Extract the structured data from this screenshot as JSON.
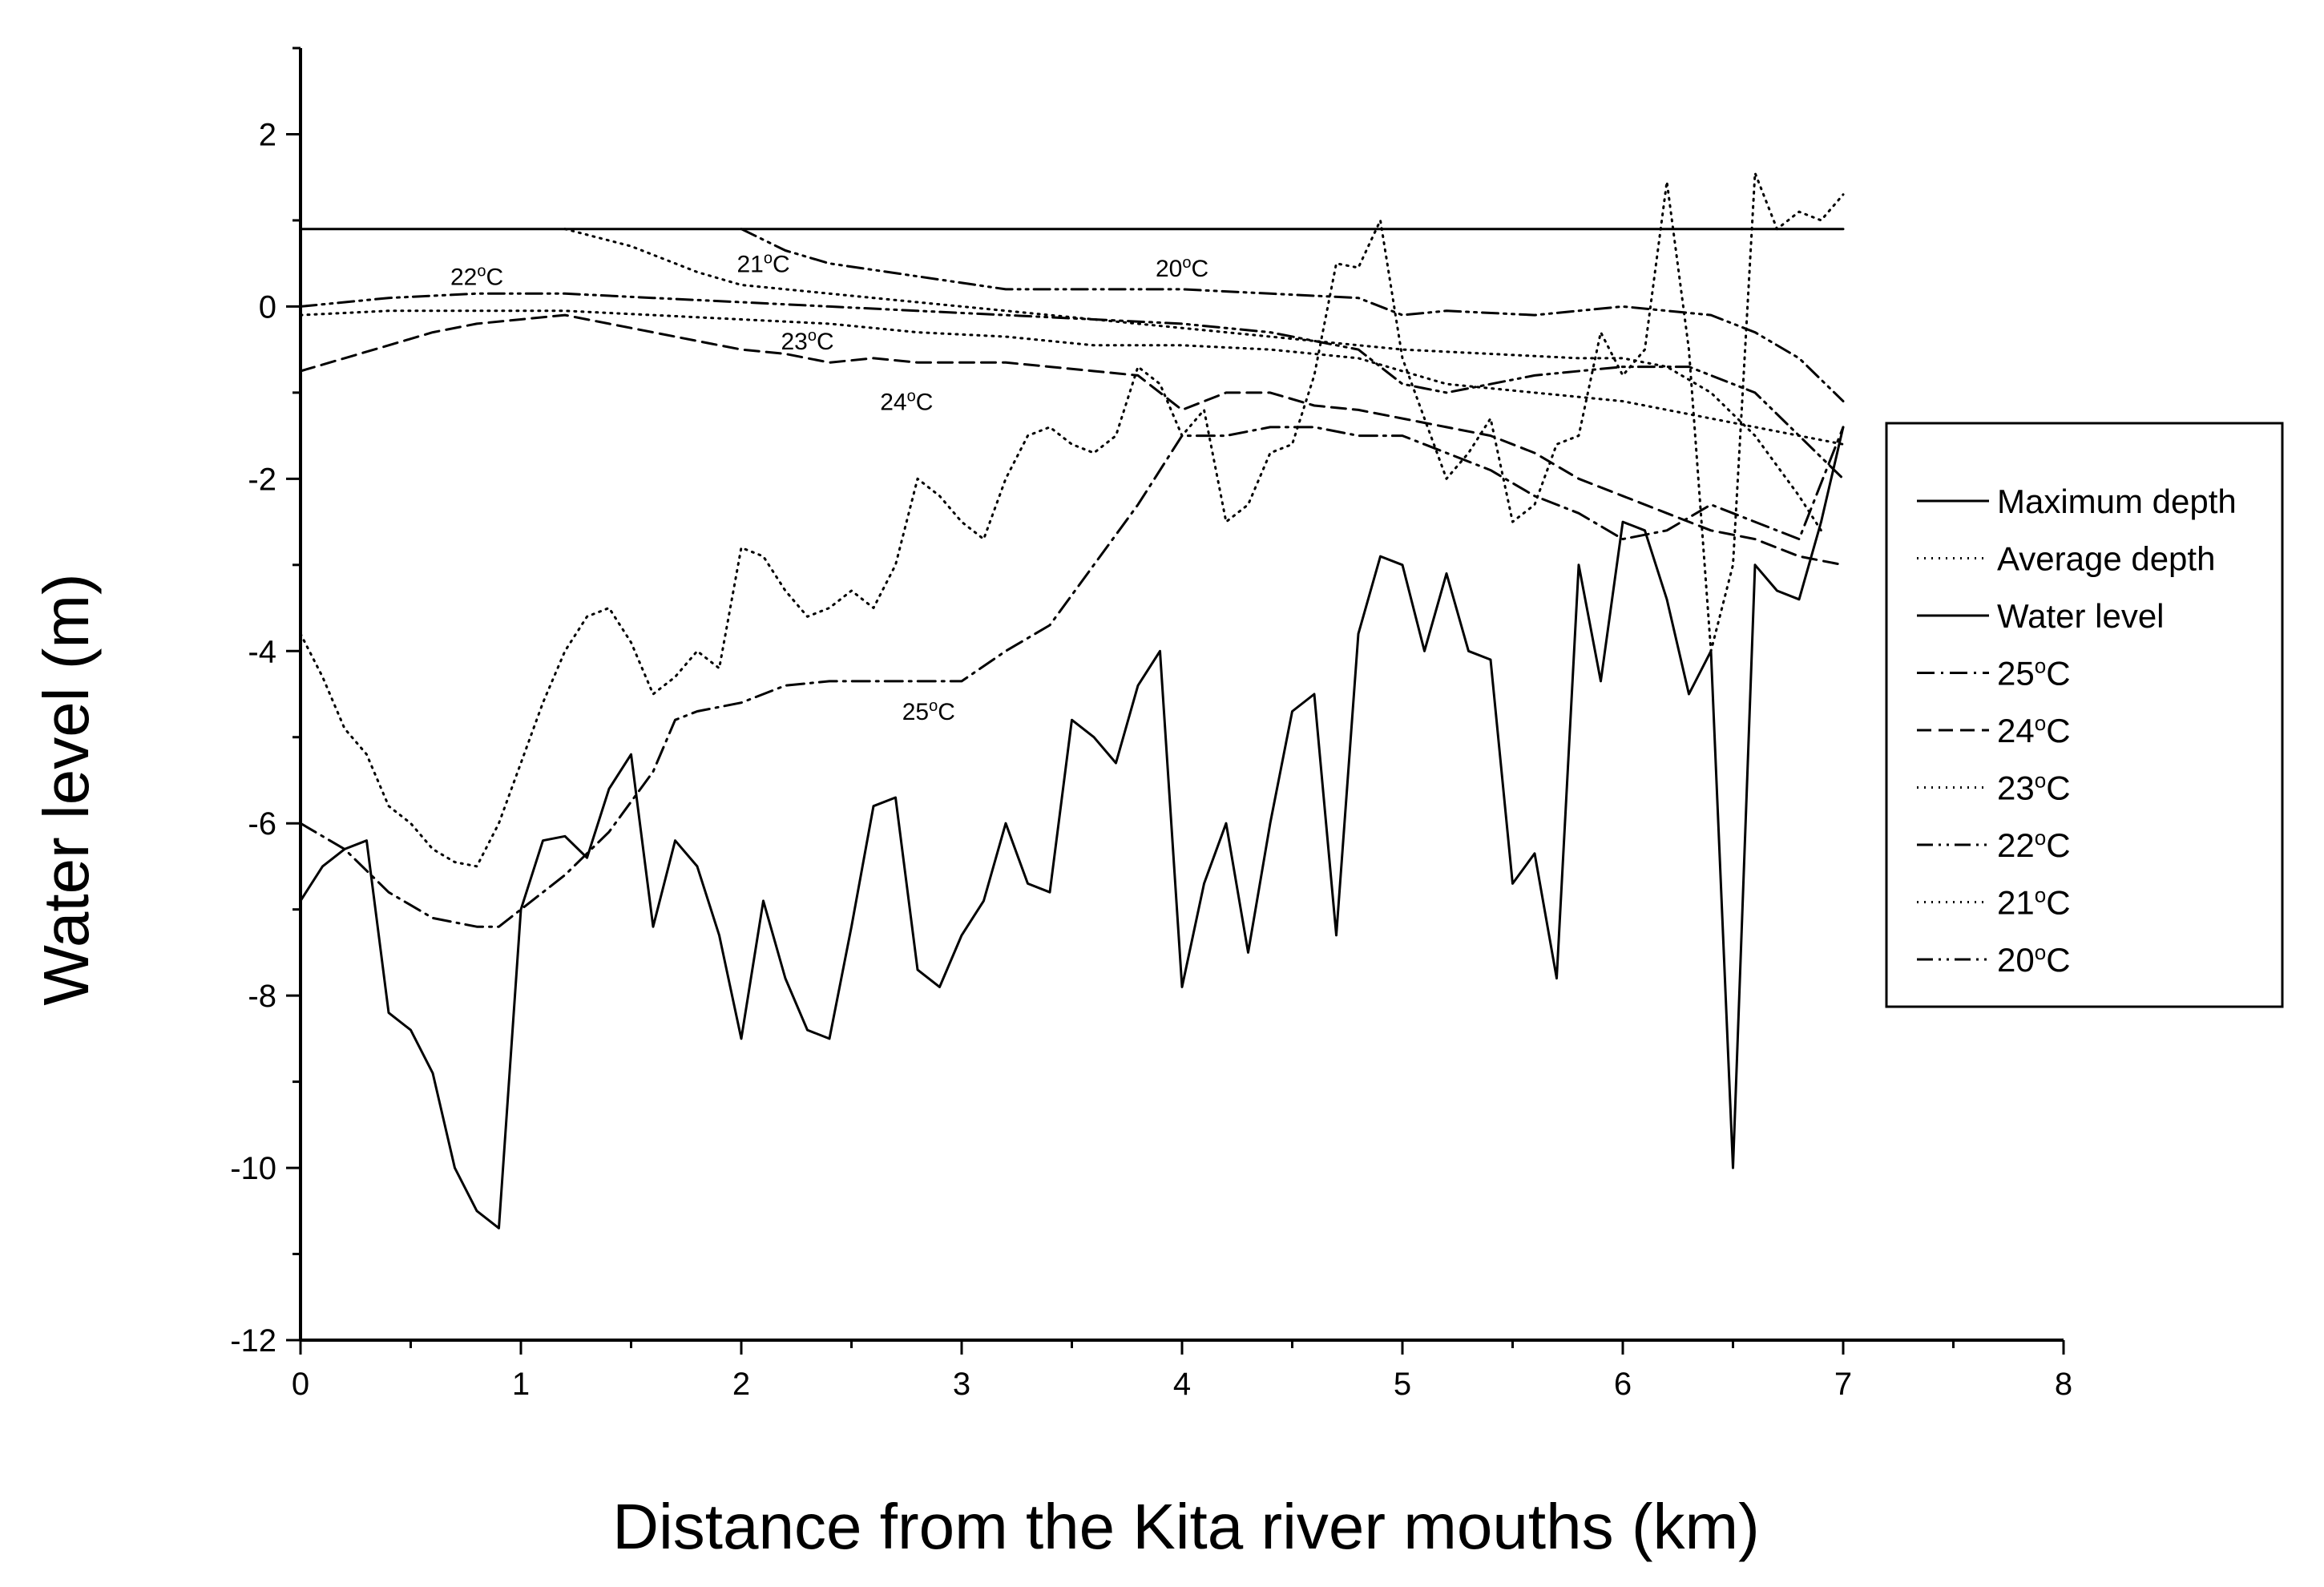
{
  "chart_data": {
    "type": "line",
    "title": "",
    "xlabel": "Distance from the Kita river mouths (km)",
    "ylabel": "Water level (m)",
    "xlim": [
      0,
      8
    ],
    "ylim": [
      -12,
      3
    ],
    "xticks": [
      0,
      1,
      2,
      3,
      4,
      5,
      6,
      7,
      8
    ],
    "yticks": [
      -12,
      -10,
      -8,
      -6,
      -4,
      -2,
      0,
      2
    ],
    "grid": false,
    "legend_position": "right",
    "series": [
      {
        "name": "Maximum depth",
        "style": "solid",
        "x": [
          0,
          0.1,
          0.2,
          0.3,
          0.4,
          0.5,
          0.6,
          0.7,
          0.8,
          0.9,
          1.0,
          1.1,
          1.2,
          1.3,
          1.4,
          1.5,
          1.6,
          1.7,
          1.8,
          1.9,
          2.0,
          2.1,
          2.2,
          2.3,
          2.4,
          2.5,
          2.6,
          2.7,
          2.8,
          2.9,
          3.0,
          3.1,
          3.2,
          3.3,
          3.4,
          3.5,
          3.6,
          3.7,
          3.8,
          3.9,
          4.0,
          4.1,
          4.2,
          4.3,
          4.4,
          4.5,
          4.6,
          4.7,
          4.8,
          4.9,
          5.0,
          5.1,
          5.2,
          5.3,
          5.4,
          5.5,
          5.6,
          5.7,
          5.8,
          5.9,
          6.0,
          6.1,
          6.2,
          6.3,
          6.4,
          6.5,
          6.6,
          6.7,
          6.8,
          6.9,
          7.0
        ],
        "y": [
          -6.9,
          -6.5,
          -6.3,
          -6.2,
          -8.2,
          -8.4,
          -8.9,
          -10.0,
          -10.5,
          -10.7,
          -7.0,
          -6.2,
          -6.15,
          -6.4,
          -5.6,
          -5.2,
          -7.2,
          -6.2,
          -6.5,
          -7.3,
          -8.5,
          -6.9,
          -7.8,
          -8.4,
          -8.5,
          -7.2,
          -5.8,
          -5.7,
          -7.7,
          -7.9,
          -7.3,
          -6.9,
          -6.0,
          -6.7,
          -6.8,
          -4.8,
          -5.0,
          -5.3,
          -4.4,
          -4.0,
          -7.9,
          -6.7,
          -6.0,
          -7.5,
          -6.0,
          -4.7,
          -4.5,
          -7.3,
          -3.8,
          -2.9,
          -3.0,
          -4.0,
          -3.1,
          -4.0,
          -4.1,
          -6.7,
          -6.35,
          -7.8,
          -3.0,
          -4.35,
          -2.5,
          -2.6,
          -3.4,
          -4.5,
          -4.0,
          -10.0,
          -3.0,
          -3.3,
          -3.4,
          -2.5,
          -1.4
        ]
      },
      {
        "name": "Average depth",
        "style": "dotted",
        "x": [
          0,
          0.1,
          0.2,
          0.3,
          0.4,
          0.5,
          0.6,
          0.7,
          0.8,
          0.9,
          1.0,
          1.1,
          1.2,
          1.3,
          1.4,
          1.5,
          1.6,
          1.7,
          1.8,
          1.9,
          2.0,
          2.1,
          2.2,
          2.3,
          2.4,
          2.5,
          2.6,
          2.7,
          2.8,
          2.9,
          3.0,
          3.1,
          3.2,
          3.3,
          3.4,
          3.5,
          3.6,
          3.7,
          3.8,
          3.9,
          4.0,
          4.1,
          4.2,
          4.3,
          4.4,
          4.5,
          4.6,
          4.7,
          4.8,
          4.9,
          5.0,
          5.1,
          5.2,
          5.3,
          5.4,
          5.5,
          5.6,
          5.7,
          5.8,
          5.9,
          6.0,
          6.1,
          6.2,
          6.3,
          6.4,
          6.5,
          6.6,
          6.7,
          6.8,
          6.9,
          7.0
        ],
        "y": [
          -3.8,
          -4.3,
          -4.9,
          -5.2,
          -5.8,
          -6.0,
          -6.3,
          -6.45,
          -6.5,
          -6.0,
          -5.3,
          -4.6,
          -4.0,
          -3.6,
          -3.5,
          -3.9,
          -4.5,
          -4.3,
          -4.0,
          -4.2,
          -2.8,
          -2.9,
          -3.3,
          -3.6,
          -3.5,
          -3.3,
          -3.5,
          -3.0,
          -2.0,
          -2.2,
          -2.5,
          -2.7,
          -2.0,
          -1.5,
          -1.4,
          -1.6,
          -1.7,
          -1.5,
          -0.7,
          -0.9,
          -1.5,
          -1.2,
          -2.5,
          -2.3,
          -1.7,
          -1.6,
          -0.8,
          0.5,
          0.45,
          1.0,
          -0.6,
          -1.3,
          -2.0,
          -1.7,
          -1.3,
          -2.5,
          -2.3,
          -1.6,
          -1.5,
          -0.3,
          -0.8,
          -0.5,
          1.45,
          -0.5,
          -4.0,
          -3.0,
          1.55,
          0.9,
          1.1,
          1.0,
          1.3
        ]
      },
      {
        "name": "Water level",
        "style": "solid",
        "x": [
          0,
          7
        ],
        "y": [
          0.9,
          0.9
        ]
      },
      {
        "name": "25°C",
        "style": "dash-dot",
        "x": [
          0,
          0.2,
          0.4,
          0.6,
          0.8,
          0.9,
          1.0,
          1.2,
          1.4,
          1.6,
          1.7,
          1.8,
          2.0,
          2.2,
          2.4,
          2.6,
          2.8,
          3.0,
          3.2,
          3.4,
          3.6,
          3.8,
          4.0,
          4.2,
          4.4,
          4.6,
          4.8,
          5.0,
          5.2,
          5.4,
          5.6,
          5.8,
          6.0,
          6.2,
          6.4,
          6.6,
          6.8,
          7.0
        ],
        "y": [
          -6.0,
          -6.3,
          -6.8,
          -7.1,
          -7.2,
          -7.2,
          -7.0,
          -6.6,
          -6.1,
          -5.4,
          -4.8,
          -4.7,
          -4.6,
          -4.4,
          -4.35,
          -4.35,
          -4.35,
          -4.35,
          -4.0,
          -3.7,
          -3.0,
          -2.3,
          -1.5,
          -1.5,
          -1.4,
          -1.4,
          -1.5,
          -1.5,
          -1.7,
          -1.9,
          -2.2,
          -2.4,
          -2.7,
          -2.6,
          -2.3,
          -2.5,
          -2.7,
          -1.4
        ]
      },
      {
        "name": "24°C",
        "style": "dashed",
        "x": [
          0,
          0.2,
          0.4,
          0.6,
          0.8,
          1.0,
          1.2,
          1.4,
          1.6,
          1.8,
          2.0,
          2.2,
          2.4,
          2.6,
          2.8,
          3.0,
          3.2,
          3.4,
          3.6,
          3.8,
          4.0,
          4.2,
          4.4,
          4.6,
          4.8,
          5.0,
          5.2,
          5.4,
          5.6,
          5.8,
          6.0,
          6.2,
          6.4,
          6.6,
          6.8,
          7.0
        ],
        "y": [
          -0.75,
          -0.6,
          -0.45,
          -0.3,
          -0.2,
          -0.15,
          -0.1,
          -0.2,
          -0.3,
          -0.4,
          -0.5,
          -0.55,
          -0.65,
          -0.6,
          -0.65,
          -0.65,
          -0.65,
          -0.7,
          -0.75,
          -0.8,
          -1.2,
          -1.0,
          -1.0,
          -1.15,
          -1.2,
          -1.3,
          -1.4,
          -1.5,
          -1.7,
          -2.0,
          -2.2,
          -2.4,
          -2.6,
          -2.7,
          -2.9,
          -3.0
        ]
      },
      {
        "name": "23°C",
        "style": "dotted",
        "x": [
          0,
          0.4,
          0.8,
          1.2,
          1.6,
          2.0,
          2.4,
          2.8,
          3.2,
          3.6,
          4.0,
          4.4,
          4.8,
          5.2,
          5.6,
          6.0,
          6.4,
          6.8,
          7.0
        ],
        "y": [
          -0.1,
          -0.05,
          -0.05,
          -0.05,
          -0.1,
          -0.15,
          -0.2,
          -0.3,
          -0.35,
          -0.45,
          -0.45,
          -0.5,
          -0.6,
          -0.9,
          -1.0,
          -1.1,
          -1.3,
          -1.5,
          -1.6
        ]
      },
      {
        "name": "22°C",
        "style": "dash-dot-dot",
        "x": [
          0,
          0.4,
          0.8,
          1.2,
          1.6,
          2.0,
          2.4,
          2.8,
          3.2,
          3.6,
          4.0,
          4.4,
          4.8,
          5.0,
          5.2,
          5.6,
          6.0,
          6.3,
          6.6,
          6.8,
          7.0
        ],
        "y": [
          0.0,
          0.1,
          0.15,
          0.15,
          0.1,
          0.05,
          0.0,
          -0.05,
          -0.1,
          -0.15,
          -0.2,
          -0.3,
          -0.5,
          -0.9,
          -1.0,
          -0.8,
          -0.7,
          -0.7,
          -1.0,
          -1.5,
          -2.0
        ]
      },
      {
        "name": "21°C",
        "style": "dotted",
        "x": [
          1.2,
          1.5,
          1.8,
          2.0,
          2.2,
          2.6,
          3.0,
          3.4,
          3.8,
          4.2,
          4.6,
          5.0,
          5.4,
          5.8,
          6.0,
          6.2,
          6.4,
          6.6,
          6.8,
          6.9
        ],
        "y": [
          0.9,
          0.7,
          0.4,
          0.25,
          0.2,
          0.1,
          0.0,
          -0.1,
          -0.2,
          -0.3,
          -0.4,
          -0.5,
          -0.55,
          -0.6,
          -0.6,
          -0.7,
          -1.0,
          -1.5,
          -2.2,
          -2.6
        ]
      },
      {
        "name": "20°C",
        "style": "dash-dot-dot",
        "x": [
          2.0,
          2.2,
          2.4,
          2.8,
          3.2,
          3.6,
          4.0,
          4.4,
          4.8,
          5.0,
          5.2,
          5.6,
          6.0,
          6.4,
          6.6,
          6.8,
          7.0
        ],
        "y": [
          0.9,
          0.65,
          0.5,
          0.35,
          0.2,
          0.2,
          0.2,
          0.15,
          0.1,
          -0.1,
          -0.05,
          -0.1,
          0.0,
          -0.1,
          -0.3,
          -0.6,
          -1.1
        ]
      }
    ],
    "annotations": [
      {
        "base": "22",
        "unit": "C",
        "x": 0.68,
        "y": 0.25
      },
      {
        "base": "21",
        "unit": "C",
        "x": 1.98,
        "y": 0.4
      },
      {
        "base": "20",
        "unit": "C",
        "x": 3.88,
        "y": 0.35
      },
      {
        "base": "23",
        "unit": "C",
        "x": 2.18,
        "y": -0.5
      },
      {
        "base": "24",
        "unit": "C",
        "x": 2.63,
        "y": -1.2
      },
      {
        "base": "25",
        "unit": "C",
        "x": 2.73,
        "y": -4.8
      }
    ]
  }
}
